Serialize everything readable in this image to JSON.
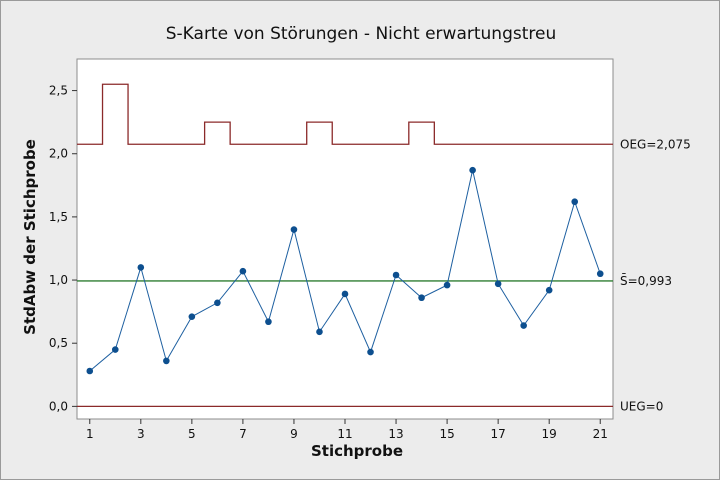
{
  "chart_data": {
    "type": "line",
    "title": "S-Karte von Störungen - Nicht erwartungstreu",
    "xlabel": "Stichprobe",
    "ylabel": "StdAbw der Stichprobe",
    "xlim": [
      0.5,
      21.5
    ],
    "ylim": [
      -0.1,
      2.75
    ],
    "xticks": [
      1,
      3,
      5,
      7,
      9,
      11,
      13,
      15,
      17,
      19,
      21
    ],
    "yticks": [
      0.0,
      0.5,
      1.0,
      1.5,
      2.0,
      2.5
    ],
    "ytick_labels": [
      "0,0",
      "0,5",
      "1,0",
      "1,5",
      "2,0",
      "2,5"
    ],
    "grid": false,
    "x": [
      1,
      2,
      3,
      4,
      5,
      6,
      7,
      8,
      9,
      10,
      11,
      12,
      13,
      14,
      15,
      16,
      17,
      18,
      19,
      20,
      21
    ],
    "values": [
      0.28,
      0.45,
      1.1,
      0.36,
      0.71,
      0.82,
      1.07,
      0.67,
      1.4,
      0.59,
      0.89,
      0.43,
      1.04,
      0.86,
      0.96,
      1.87,
      0.97,
      0.64,
      0.92,
      1.62,
      1.05
    ],
    "center_line": {
      "value": 0.993,
      "label": "S̄=0,993"
    },
    "lower_limit": {
      "value": 0,
      "label": "UEG=0"
    },
    "upper_limit": {
      "label": "OEG=2,075",
      "values": [
        2.075,
        2.55,
        2.075,
        2.075,
        2.075,
        2.25,
        2.075,
        2.075,
        2.075,
        2.25,
        2.075,
        2.075,
        2.075,
        2.25,
        2.075,
        2.075,
        2.075,
        2.075,
        2.075,
        2.075,
        2.075
      ]
    },
    "colors": {
      "series": "#1d5fa0",
      "marker": "#0d4f8f",
      "center_line": "#2e7d32",
      "limits": "#8b2a2a"
    }
  }
}
